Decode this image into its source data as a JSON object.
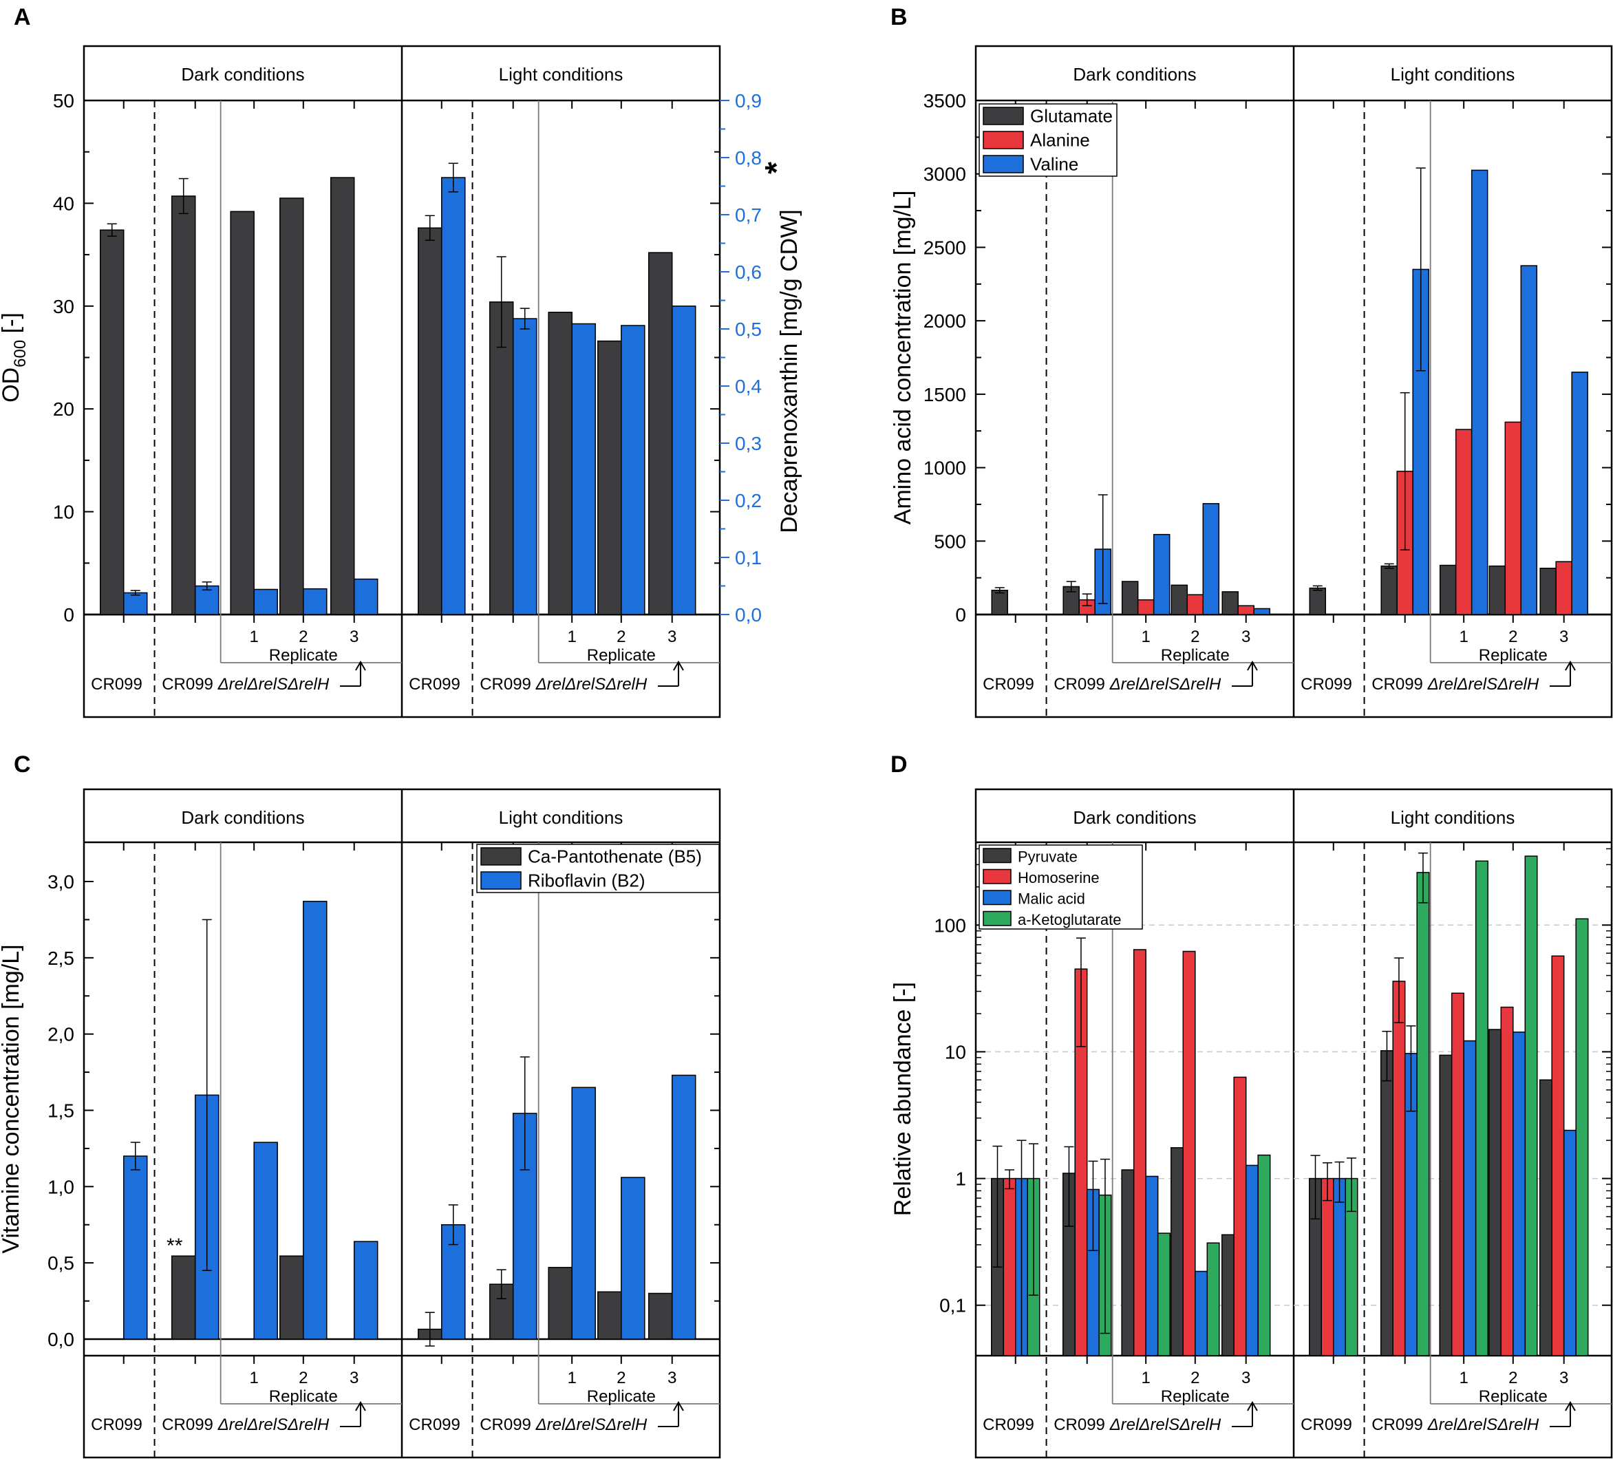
{
  "figure": {
    "group_labels": [
      "CR099",
      "CR099 ΔrelΔrelSΔrelH"
    ],
    "condition_labels": [
      "Dark conditions",
      "Light conditions"
    ],
    "replicate_label": "Replicate",
    "replicate_numbers": [
      "1",
      "2",
      "3"
    ],
    "colors": {
      "grey": "#3d3d3f",
      "red": "#e8383d",
      "blue": "#1d6fdc",
      "green": "#2eaa5f",
      "axis_blue": "#1d6fdc"
    }
  },
  "chart_data": [
    {
      "panel": "A",
      "type": "bar",
      "ylabel": "OD600 [-]",
      "ylabel_parts": {
        "base": "OD",
        "sub": "600",
        "suffix": " [-]"
      },
      "y2label": "Decaprenoxanthin [mg/g CDW]",
      "y2_marker": "*",
      "ylim": [
        0,
        50
      ],
      "y2lim": [
        0,
        0.9
      ],
      "yticks": [
        "0",
        "10",
        "20",
        "30",
        "40",
        "50"
      ],
      "y2ticks": [
        "0,0",
        "0,1",
        "0,2",
        "0,3",
        "0,4",
        "0,5",
        "0,6",
        "0,7",
        "0,8",
        "0,9"
      ],
      "legend": null,
      "series": [
        {
          "name": "OD600",
          "color": "grey",
          "axis": "left",
          "dark": [
            37.4,
            40.7,
            39.2,
            40.5,
            42.5
          ],
          "dark_err": [
            0.6,
            1.7,
            0,
            0,
            0
          ],
          "light": [
            37.6,
            30.4,
            29.4,
            26.6,
            35.2
          ],
          "light_err": [
            1.2,
            4.4,
            0,
            0,
            0
          ]
        },
        {
          "name": "Decaprenoxanthin",
          "color": "blue",
          "axis": "right",
          "dark": [
            0.038,
            0.05,
            0.044,
            0.045,
            0.062
          ],
          "dark_err": [
            0.004,
            0.007,
            0,
            0,
            0
          ],
          "light": [
            0.765,
            0.518,
            0.509,
            0.506,
            0.54
          ],
          "light_err": [
            0.025,
            0.018,
            0,
            0,
            0
          ]
        }
      ]
    },
    {
      "panel": "B",
      "type": "bar",
      "ylabel": "Amino acid concentration [mg/L]",
      "ylim": [
        0,
        3500
      ],
      "yticks": [
        "0",
        "500",
        "1000",
        "1500",
        "2000",
        "2500",
        "3000",
        "3500"
      ],
      "legend": [
        "Glutamate",
        "Alanine",
        "Valine"
      ],
      "series": [
        {
          "name": "Glutamate",
          "color": "grey",
          "dark": [
            165,
            190,
            225,
            200,
            155
          ],
          "dark_err": [
            18,
            35,
            0,
            0,
            0
          ],
          "light": [
            180,
            330,
            335,
            330,
            315
          ],
          "light_err": [
            15,
            15,
            0,
            0,
            0
          ]
        },
        {
          "name": "Alanine",
          "color": "red",
          "dark": [
            2,
            100,
            100,
            135,
            60
          ],
          "dark_err": [
            0,
            40,
            0,
            0,
            0
          ],
          "light": [
            2,
            975,
            1260,
            1310,
            360
          ],
          "light_err": [
            0,
            535,
            0,
            0,
            0
          ]
        },
        {
          "name": "Valine",
          "color": "blue",
          "dark": [
            0,
            445,
            545,
            755,
            40
          ],
          "dark_err": [
            0,
            370,
            0,
            0,
            0
          ],
          "light": [
            0,
            2350,
            3025,
            2375,
            1650
          ],
          "light_err": [
            0,
            690,
            0,
            0,
            0
          ]
        }
      ]
    },
    {
      "panel": "C",
      "type": "bar",
      "ylabel": "Vitamine concentration [mg/L]",
      "ylim": [
        -0.1,
        3.25
      ],
      "yticks": [
        "0,0",
        "0,5",
        "1,0",
        "1,5",
        "2,0",
        "2,5",
        "3,0"
      ],
      "ytick_values": [
        0,
        0.5,
        1.0,
        1.5,
        2.0,
        2.5,
        3.0
      ],
      "legend": [
        "Ca-Pantothenate (B5)",
        "Riboflavin (B2)"
      ],
      "annotation": "**",
      "series": [
        {
          "name": "Ca-Pantothenate (B5)",
          "color": "grey",
          "dark": [
            0,
            0.545,
            0,
            0.545,
            0
          ],
          "dark_err": [
            0,
            0,
            0,
            0,
            0
          ],
          "light": [
            0.065,
            0.36,
            0.47,
            0.31,
            0.3
          ],
          "light_err": [
            0.11,
            0.095,
            0,
            0,
            0
          ]
        },
        {
          "name": "Riboflavin (B2)",
          "color": "blue",
          "dark": [
            1.2,
            1.6,
            1.29,
            2.87,
            0.64
          ],
          "dark_err": [
            0.09,
            1.15,
            0,
            0,
            0
          ],
          "light": [
            0.75,
            1.48,
            1.65,
            1.06,
            1.73
          ],
          "light_err": [
            0.13,
            0.37,
            0,
            0,
            0
          ]
        }
      ]
    },
    {
      "panel": "D",
      "type": "bar",
      "scale": "log",
      "ylabel": "Relative abundance [-]",
      "ylim": [
        0.04,
        450
      ],
      "yticks": [
        "0,1",
        "1",
        "10",
        "100"
      ],
      "ytick_values": [
        0.1,
        1,
        10,
        100
      ],
      "legend": [
        "Pyruvate",
        "Homoserine",
        "Malic acid",
        "a-Ketoglutarate"
      ],
      "series": [
        {
          "name": "Pyruvate",
          "color": "grey",
          "dark": [
            1.0,
            1.1,
            1.17,
            1.75,
            0.36
          ],
          "dark_err": [
            0.8,
            0.68,
            0,
            0,
            0
          ],
          "light": [
            1.0,
            10.2,
            9.4,
            15.0,
            6.0
          ],
          "light_err": [
            0.52,
            4.3,
            0,
            0,
            0
          ]
        },
        {
          "name": "Homoserine",
          "color": "red",
          "dark": [
            1.0,
            45,
            64,
            62,
            6.3
          ],
          "dark_err": [
            0.17,
            34,
            0,
            0,
            0
          ],
          "light": [
            1.0,
            36,
            29,
            22.5,
            57
          ],
          "light_err": [
            0.33,
            19,
            0,
            0,
            0
          ]
        },
        {
          "name": "Malic acid",
          "color": "blue",
          "dark": [
            1.0,
            0.82,
            1.04,
            0.185,
            1.27
          ],
          "dark_err": [
            1.0,
            0.55,
            0,
            0,
            0
          ],
          "light": [
            1.0,
            9.7,
            12.2,
            14.3,
            2.4
          ],
          "light_err": [
            0.35,
            6.3,
            0,
            0,
            0
          ]
        },
        {
          "name": "a-Ketoglutarate",
          "color": "green",
          "dark": [
            1.0,
            0.74,
            0.37,
            0.31,
            1.53
          ],
          "dark_err": [
            0.88,
            0.68,
            0,
            0,
            0
          ],
          "light": [
            1.0,
            260,
            320,
            350,
            112
          ],
          "light_err": [
            0.45,
            110,
            0,
            0,
            0
          ]
        }
      ]
    }
  ]
}
